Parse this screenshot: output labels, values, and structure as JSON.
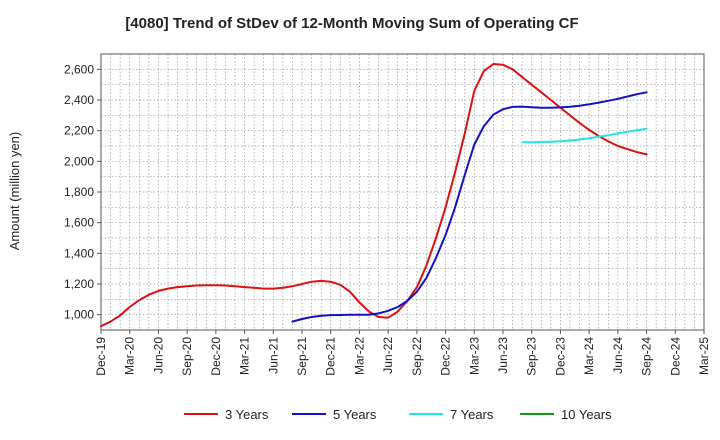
{
  "chart_data": {
    "type": "line",
    "title": "[4080]  Trend of StDev of 12-Month Moving Sum of Operating CF",
    "ylabel": "Amount (million yen)",
    "xlabel": "",
    "ylim": [
      900,
      2700
    ],
    "yticks": [
      1000,
      1200,
      1400,
      1600,
      1800,
      2000,
      2200,
      2400,
      2600
    ],
    "ytick_labels": [
      "1,000",
      "1,200",
      "1,400",
      "1,600",
      "1,800",
      "2,000",
      "2,200",
      "2,400",
      "2,600"
    ],
    "xlim": [
      "Dec-19",
      "Mar-25"
    ],
    "xtick_labels": [
      "Dec-19",
      "Mar-20",
      "Jun-20",
      "Sep-20",
      "Dec-20",
      "Mar-21",
      "Jun-21",
      "Sep-21",
      "Dec-21",
      "Mar-22",
      "Jun-22",
      "Sep-22",
      "Dec-22",
      "Mar-23",
      "Jun-23",
      "Sep-23",
      "Dec-23",
      "Mar-24",
      "Jun-24",
      "Sep-24",
      "Dec-24",
      "Mar-25"
    ],
    "grid": true,
    "legend_position": "bottom",
    "series": [
      {
        "name": "3 Years",
        "color": "#dd1111",
        "x": [
          "Dec-19",
          "Jan-20",
          "Feb-20",
          "Mar-20",
          "Apr-20",
          "May-20",
          "Jun-20",
          "Jul-20",
          "Aug-20",
          "Sep-20",
          "Oct-20",
          "Nov-20",
          "Dec-20",
          "Jan-21",
          "Feb-21",
          "Mar-21",
          "Apr-21",
          "May-21",
          "Jun-21",
          "Jul-21",
          "Aug-21",
          "Sep-21",
          "Oct-21",
          "Nov-21",
          "Dec-21",
          "Jan-22",
          "Feb-22",
          "Mar-22",
          "Apr-22",
          "May-22",
          "Jun-22",
          "Jul-22",
          "Aug-22",
          "Sep-22",
          "Oct-22",
          "Nov-22",
          "Dec-22",
          "Jan-23",
          "Feb-23",
          "Mar-23",
          "Apr-23",
          "May-23",
          "Jun-23",
          "Jul-23",
          "Aug-23",
          "Sep-23",
          "Oct-23",
          "Nov-23",
          "Dec-23",
          "Jan-24",
          "Feb-24",
          "Mar-24",
          "Apr-24",
          "May-24",
          "Jun-24",
          "Jul-24",
          "Aug-24",
          "Sep-24"
        ],
        "values": [
          925,
          955,
          995,
          1050,
          1095,
          1130,
          1155,
          1170,
          1180,
          1185,
          1190,
          1192,
          1192,
          1190,
          1185,
          1180,
          1175,
          1170,
          1170,
          1175,
          1185,
          1200,
          1215,
          1220,
          1215,
          1195,
          1150,
          1080,
          1020,
          985,
          980,
          1020,
          1090,
          1180,
          1320,
          1500,
          1700,
          1930,
          2180,
          2460,
          2590,
          2635,
          2630,
          2600,
          2550,
          2500,
          2450,
          2400,
          2350,
          2300,
          2250,
          2205,
          2165,
          2130,
          2100,
          2080,
          2060,
          2045
        ]
      },
      {
        "name": "5 Years",
        "color": "#1111cc",
        "x": [
          "Aug-21",
          "Sep-21",
          "Oct-21",
          "Nov-21",
          "Dec-21",
          "Jan-22",
          "Feb-22",
          "Mar-22",
          "Apr-22",
          "May-22",
          "Jun-22",
          "Jul-22",
          "Aug-22",
          "Sep-22",
          "Oct-22",
          "Nov-22",
          "Dec-22",
          "Jan-23",
          "Feb-23",
          "Mar-23",
          "Apr-23",
          "May-23",
          "Jun-23",
          "Jul-23",
          "Aug-23",
          "Sep-23",
          "Oct-23",
          "Nov-23",
          "Dec-23",
          "Jan-24",
          "Feb-24",
          "Mar-24",
          "Apr-24",
          "May-24",
          "Jun-24",
          "Jul-24",
          "Aug-24",
          "Sep-24"
        ],
        "values": [
          955,
          972,
          985,
          993,
          997,
          998,
          999,
          999,
          1000,
          1008,
          1025,
          1050,
          1090,
          1150,
          1240,
          1370,
          1520,
          1700,
          1910,
          2110,
          2230,
          2305,
          2340,
          2355,
          2357,
          2353,
          2350,
          2350,
          2352,
          2356,
          2363,
          2372,
          2383,
          2395,
          2408,
          2423,
          2438,
          2450
        ]
      },
      {
        "name": "7 Years",
        "color": "#22e5e5",
        "x": [
          "Aug-23",
          "Sep-23",
          "Oct-23",
          "Nov-23",
          "Dec-23",
          "Jan-24",
          "Feb-24",
          "Mar-24",
          "Apr-24",
          "May-24",
          "Jun-24",
          "Jul-24",
          "Aug-24",
          "Sep-24"
        ],
        "values": [
          2125,
          2125,
          2126,
          2128,
          2131,
          2136,
          2142,
          2150,
          2160,
          2170,
          2182,
          2193,
          2203,
          2213
        ]
      },
      {
        "name": "10 Years",
        "color": "#119911",
        "x": [],
        "values": []
      }
    ]
  }
}
